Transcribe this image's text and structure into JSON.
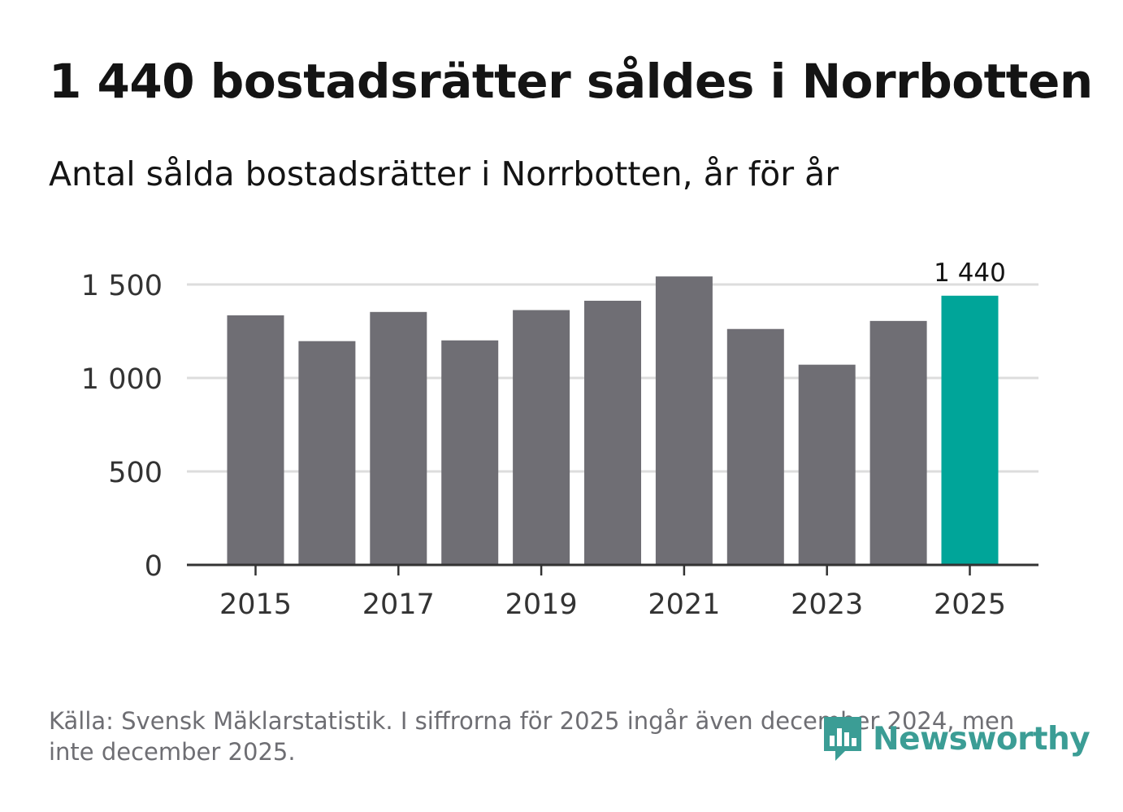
{
  "title": "1 440 bostadsrätter såldes i Norrbotten",
  "subtitle": "Antal sålda bostadsrätter i Norrbotten, år för år",
  "source": "Källa: Svensk Mäklarstatistik. I siffrorna för 2025 ingår även december 2024, men inte december 2025.",
  "brand": {
    "name": "Newsworthy"
  },
  "colors": {
    "bar": "#6f6e74",
    "highlight": "#00a599",
    "grid": "#dddddd",
    "axis": "#333333",
    "text": "#141414",
    "tick_text": "#333333",
    "source_text": "#6e6e73",
    "brand": "#3b9d95"
  },
  "chart_data": {
    "type": "bar",
    "title": "1 440 bostadsrätter såldes i Norrbotten",
    "subtitle": "Antal sålda bostadsrätter i Norrbotten, år för år",
    "xlabel": "",
    "ylabel": "",
    "categories": [
      "2015",
      "2016",
      "2017",
      "2018",
      "2019",
      "2020",
      "2021",
      "2022",
      "2023",
      "2024",
      "2025"
    ],
    "values": [
      1335,
      1197,
      1353,
      1201,
      1363,
      1413,
      1543,
      1262,
      1071,
      1305,
      1440
    ],
    "highlight_index": 10,
    "ylim": [
      0,
      1500
    ],
    "y_ticks": [
      0,
      500,
      1000,
      1500
    ],
    "y_tick_labels": [
      "0",
      "500",
      "1 000",
      "1 500"
    ],
    "x_tick_labels": [
      "2015",
      "2017",
      "2019",
      "2021",
      "2023",
      "2025"
    ],
    "data_labels": [
      {
        "index": 10,
        "text": "1 440"
      }
    ],
    "grid": true,
    "legend": "none"
  }
}
